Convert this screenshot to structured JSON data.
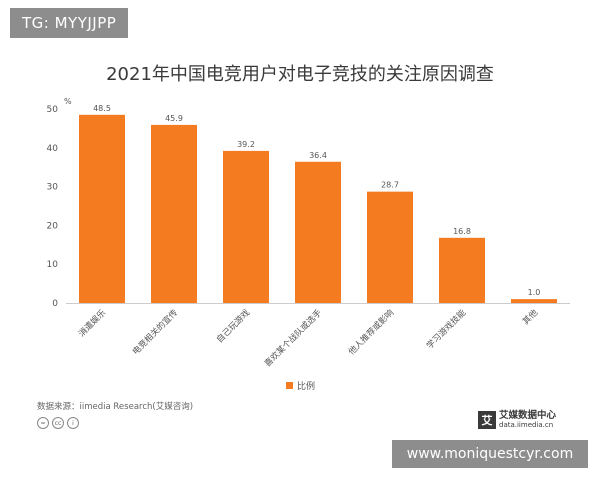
{
  "watermark_top": "TG: MYYJJPP",
  "watermark_bottom": "www.moniquestcyr.com",
  "footer": {
    "source": "数据来源：iimedia Research(艾媒咨询)",
    "license_icons": [
      "=",
      "cc",
      "i"
    ],
    "brand_mark": "艾",
    "brand_name": "艾媒数据中心",
    "brand_url": "data.iimedia.cn"
  },
  "colors": {
    "bar": "#f47b20",
    "axis": "#cccccc",
    "text": "#555555"
  },
  "chart_data": {
    "type": "bar",
    "title": "2021年中国电竞用户对电子竞技的关注原因调查",
    "ylabel": "%",
    "ylim": [
      0,
      50
    ],
    "yticks": [
      0,
      10,
      20,
      30,
      40,
      50
    ],
    "categories": [
      "消遣娱乐",
      "电竞相关的宣传",
      "自己玩游戏",
      "喜欢某个战队或选手",
      "他人推荐或影响",
      "学习游戏技能",
      "其他"
    ],
    "series": [
      {
        "name": "比例",
        "values": [
          48.5,
          45.9,
          39.2,
          36.4,
          28.7,
          16.8,
          1.0
        ]
      }
    ],
    "value_labels": [
      "48.5",
      "45.9",
      "39.2",
      "36.4",
      "28.7",
      "16.8",
      "1.0"
    ],
    "grid": false,
    "legend": "bottom-center"
  }
}
